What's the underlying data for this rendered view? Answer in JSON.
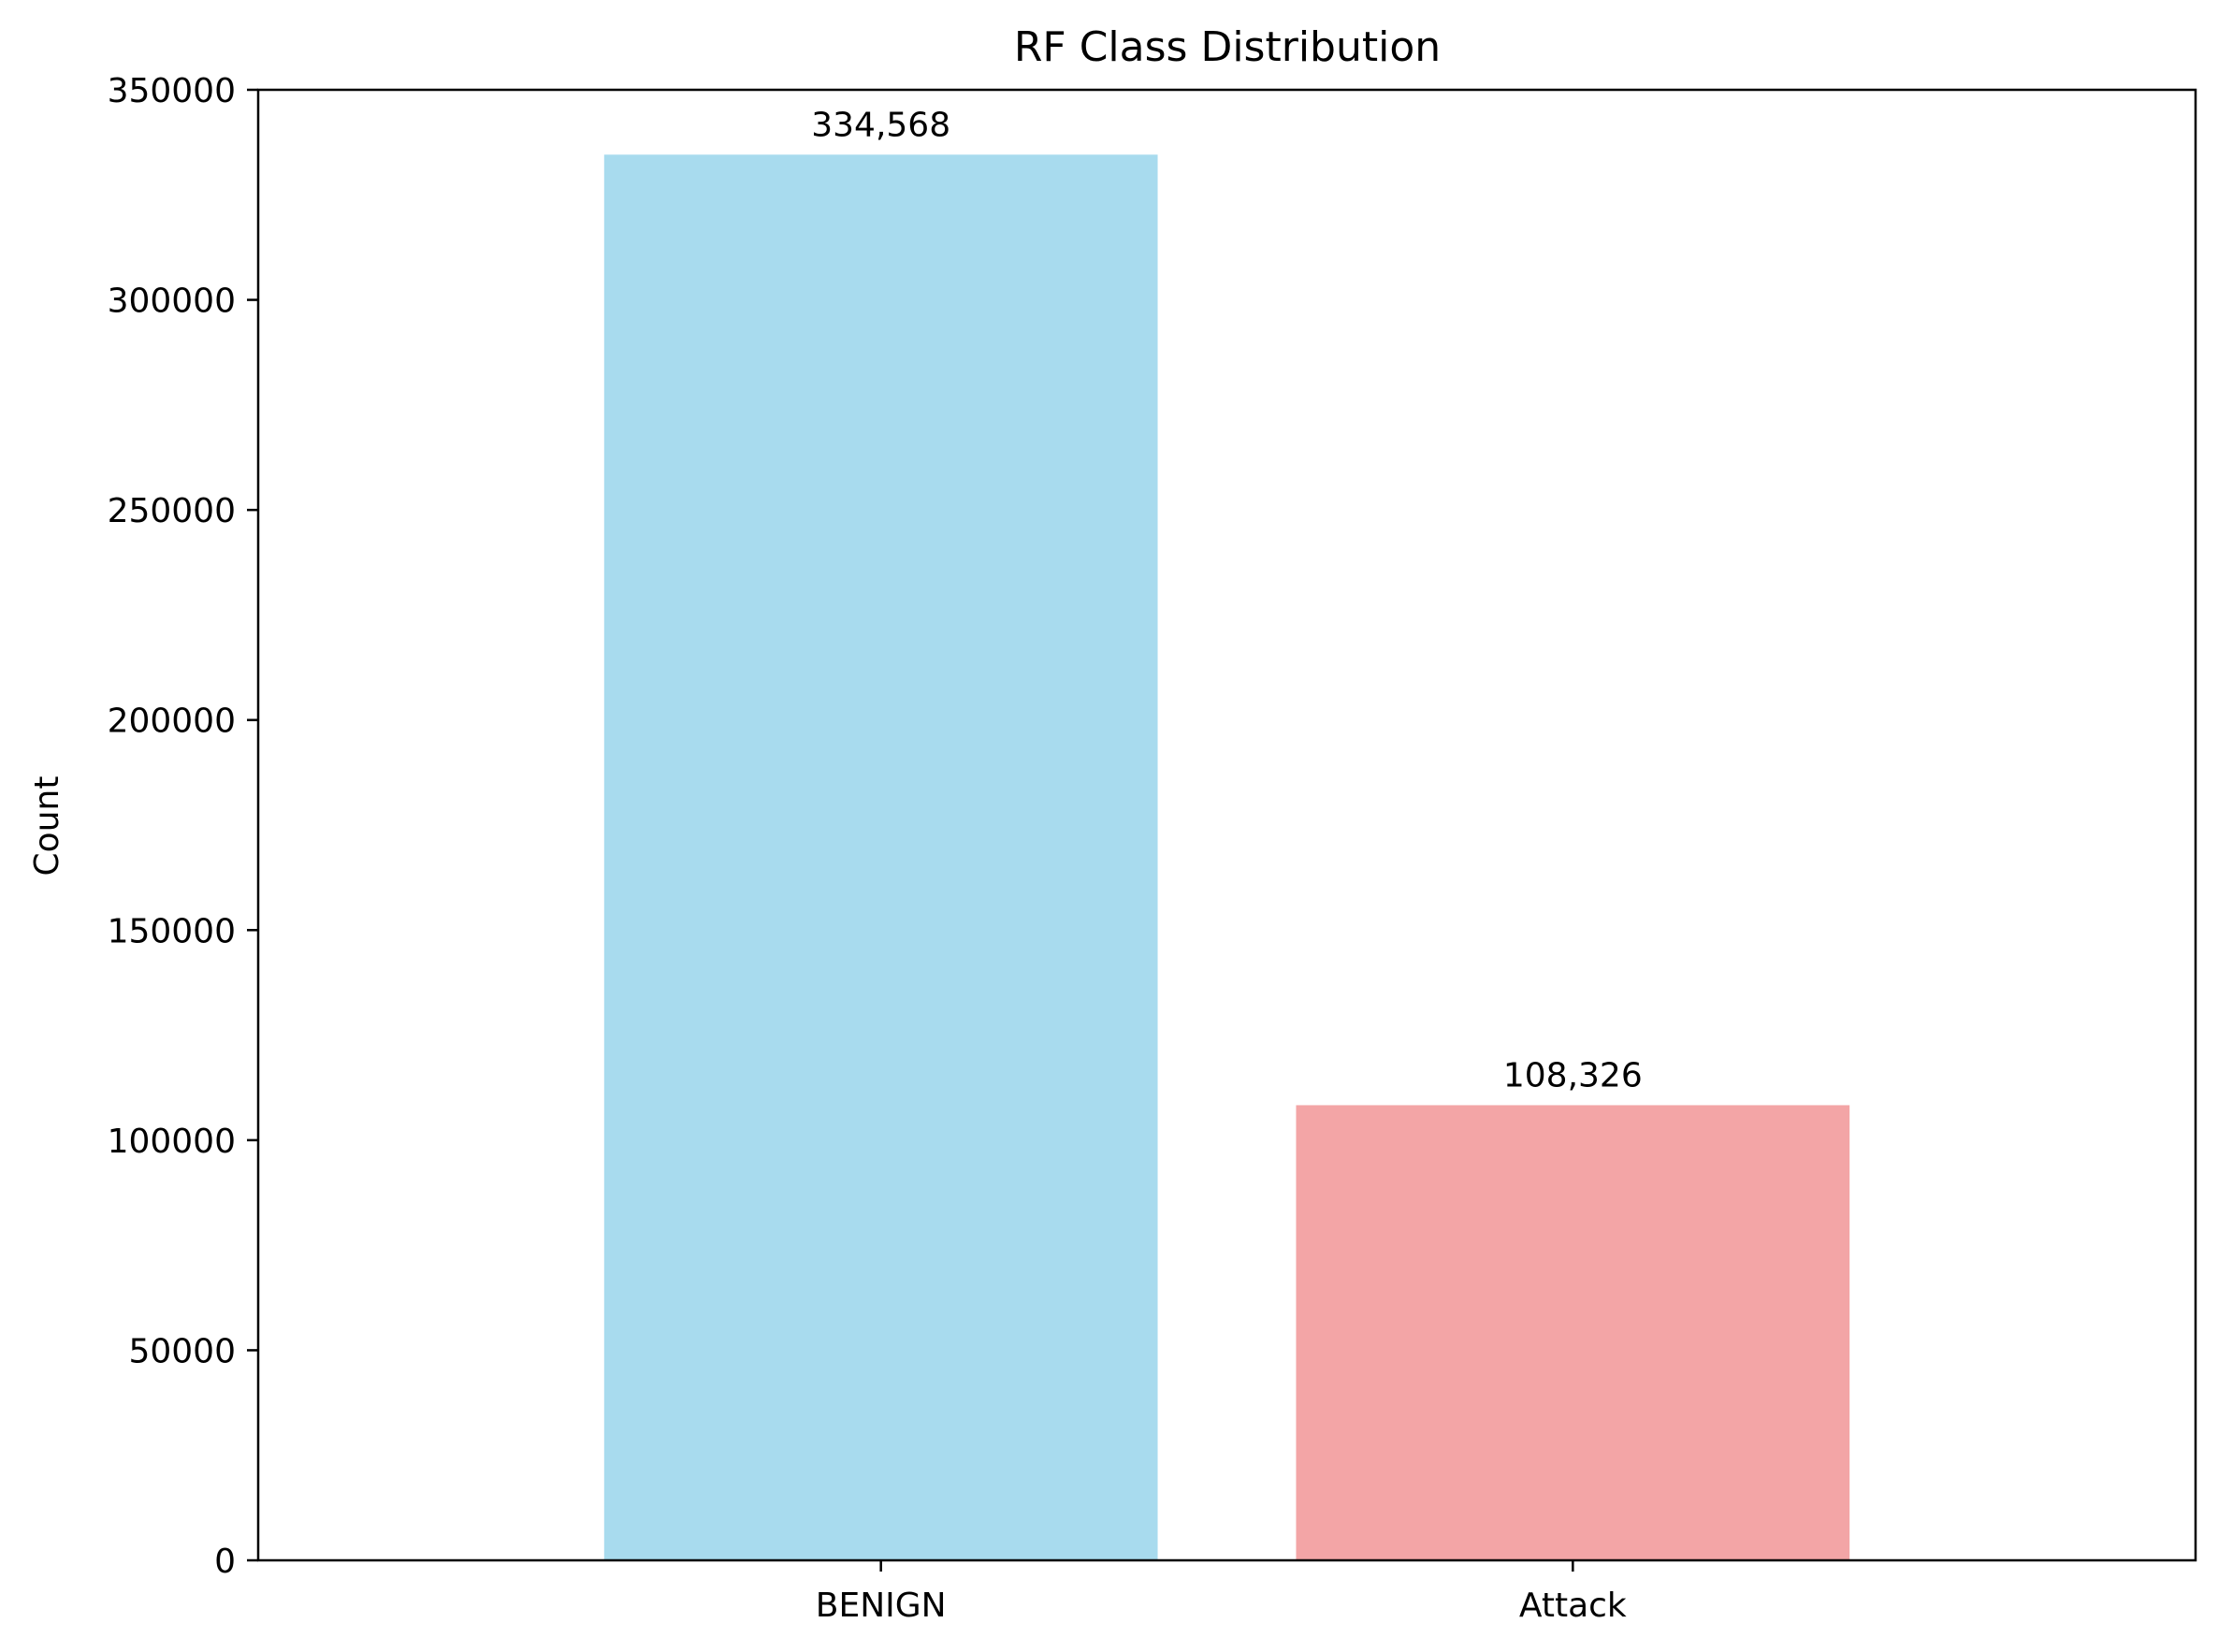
{
  "chart_data": {
    "type": "bar",
    "title": "RF Class Distribution",
    "xlabel": "",
    "ylabel": "Count",
    "categories": [
      "BENIGN",
      "Attack"
    ],
    "values": [
      334568,
      108326
    ],
    "value_labels": [
      "334,568",
      "108,326"
    ],
    "colors": [
      "#a8dbee",
      "#f3a5a6"
    ],
    "ylim": [
      0,
      350000
    ],
    "yticks": [
      0,
      50000,
      100000,
      150000,
      200000,
      250000,
      300000,
      350000
    ],
    "ytick_labels": [
      "0",
      "50000",
      "100000",
      "150000",
      "200000",
      "250000",
      "300000",
      "350000"
    ],
    "grid": false,
    "legend": "none"
  }
}
